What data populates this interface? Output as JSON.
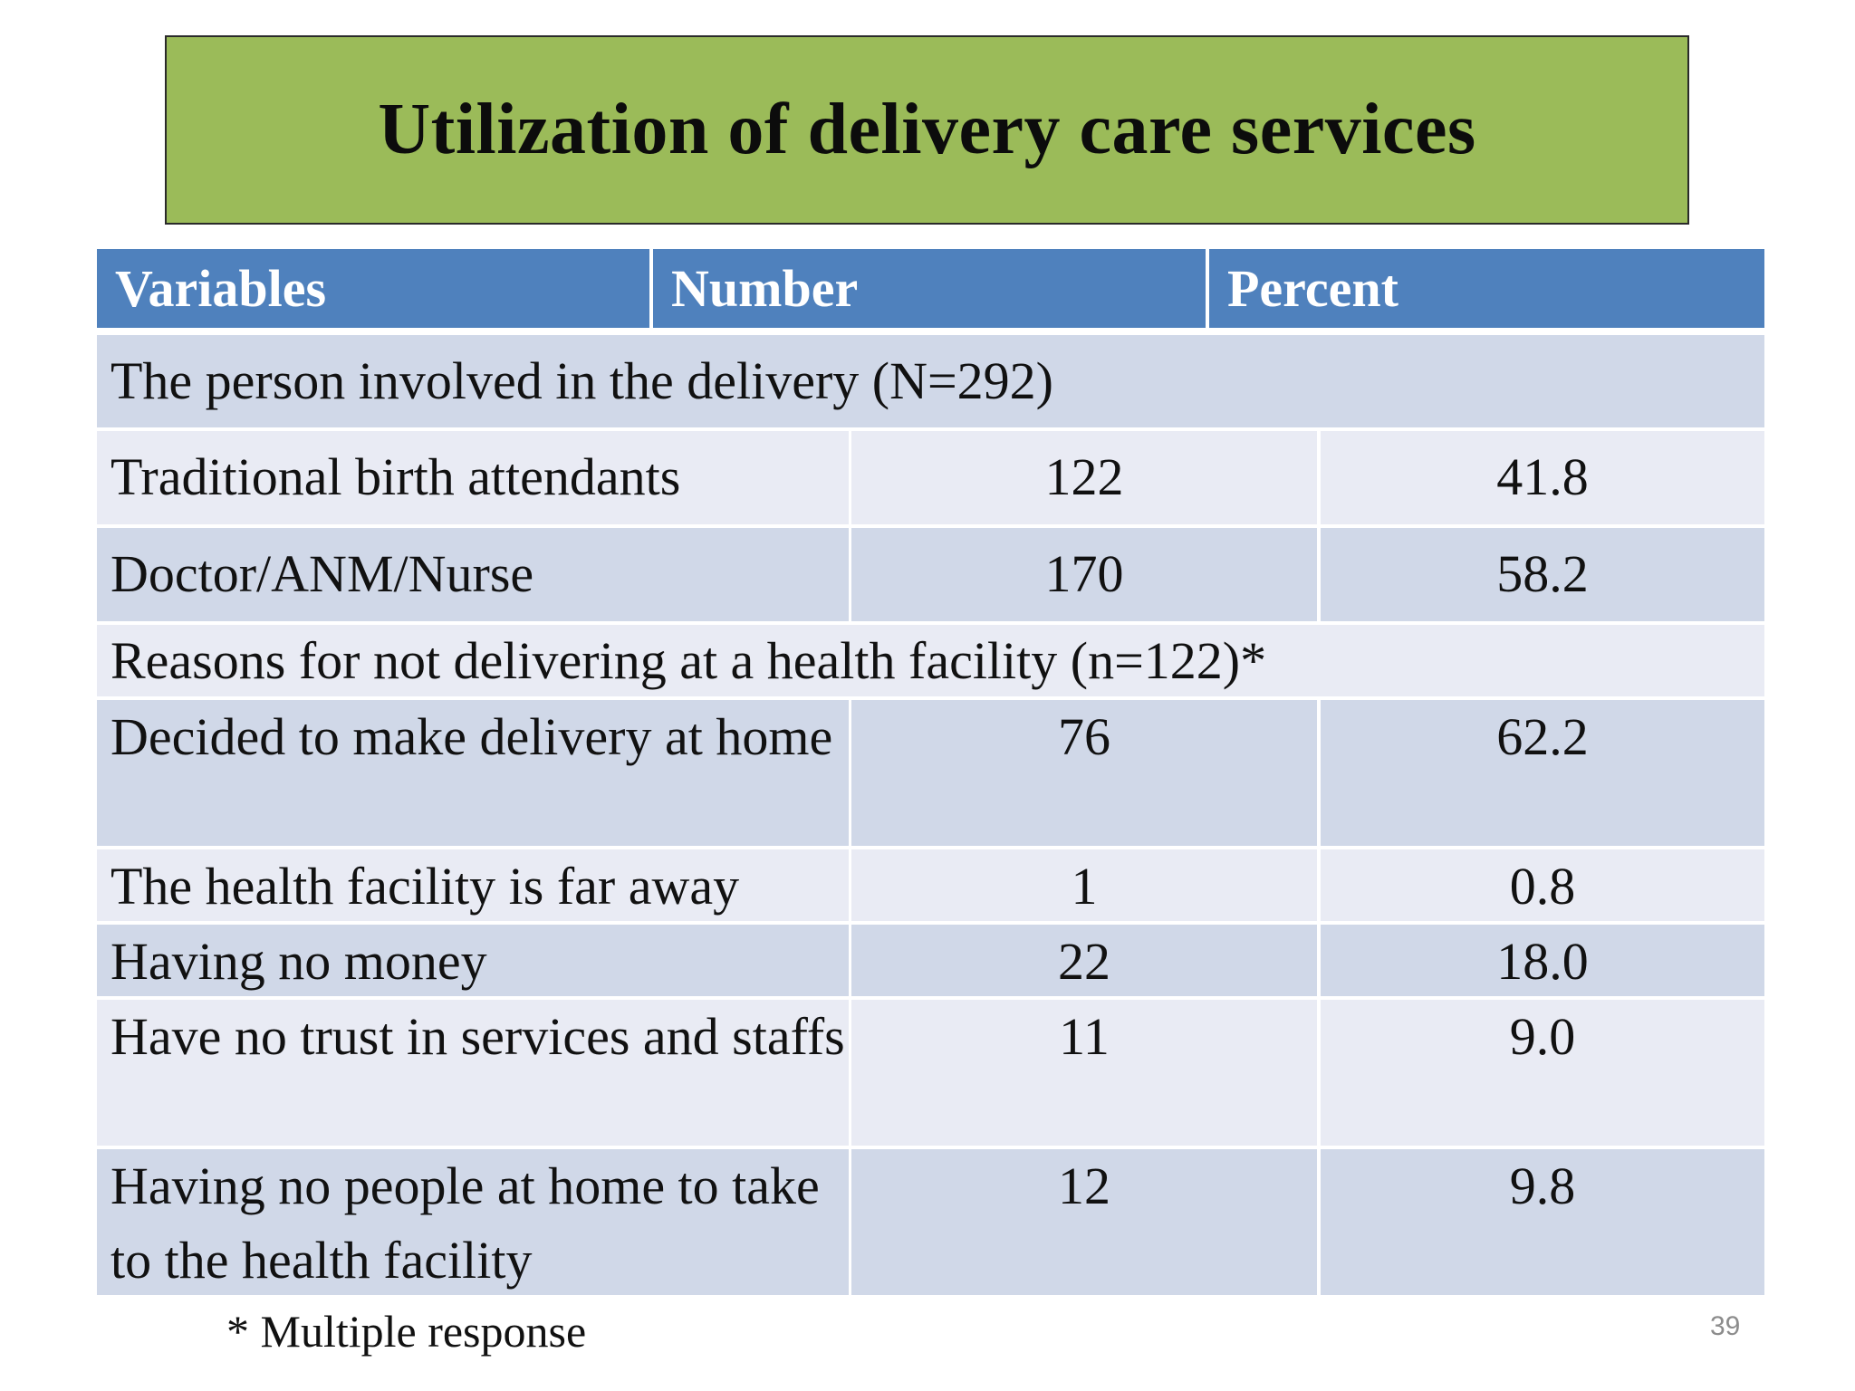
{
  "title": "Utilization of delivery care services",
  "header": {
    "col1": "Variables",
    "col2": "Number",
    "col3": "Percent"
  },
  "rows": [
    {
      "variable": "The person involved in the delivery (N=292)"
    },
    {
      "variable": "Traditional birth attendants",
      "number": "122",
      "percent": "41.8"
    },
    {
      "variable": "Doctor/ANM/Nurse",
      "number": "170",
      "percent": "58.2"
    },
    {
      "variable": "Reasons for not delivering at a health facility (n=122)*"
    },
    {
      "variable": "Decided to make delivery at home",
      "number": "76",
      "percent": "62.2"
    },
    {
      "variable": "The health facility is far away",
      "number": "1",
      "percent": "0.8"
    },
    {
      "variable": "Having no money",
      "number": "22",
      "percent": "18.0"
    },
    {
      "variable": "Have no trust in services and staffs",
      "number": "11",
      "percent": "9.0"
    },
    {
      "variable": "Having no people at home to take to the health facility",
      "number": "12",
      "percent": "9.8"
    }
  ],
  "footnote": "* Multiple response",
  "slide_number": "39",
  "colors": {
    "title_bg": "#9bbb59",
    "header_bg": "#4f81bd",
    "row_dark": "#d0d8e8",
    "row_light": "#e9ebf4"
  }
}
